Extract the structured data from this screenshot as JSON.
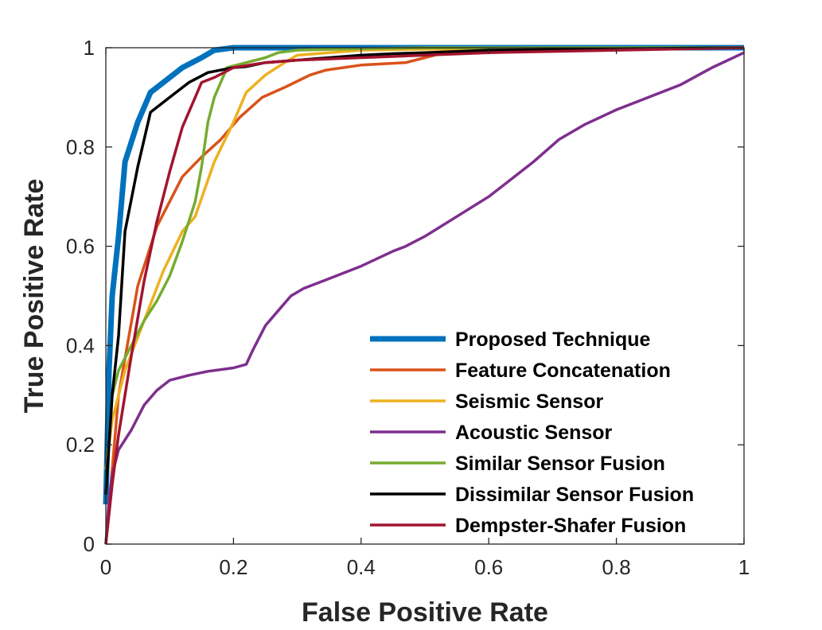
{
  "chart_data": {
    "type": "line",
    "title": "",
    "xlabel": "False Positive Rate",
    "ylabel": "True Positive Rate",
    "xlim": [
      0,
      1
    ],
    "ylim": [
      0,
      1
    ],
    "xticks": [
      0,
      0.2,
      0.4,
      0.6,
      0.8,
      1
    ],
    "yticks": [
      0,
      0.2,
      0.4,
      0.6,
      0.8,
      1
    ],
    "xtick_labels": [
      "0",
      "0.2",
      "0.4",
      "0.6",
      "0.8",
      "1"
    ],
    "ytick_labels": [
      "0",
      "0.2",
      "0.4",
      "0.6",
      "0.8",
      "1"
    ],
    "grid": false,
    "legend_position": "bottom-right",
    "series": [
      {
        "name": "Proposed Technique",
        "color": "#0072BD",
        "emphasis": "thick",
        "x": [
          0,
          0.005,
          0.01,
          0.02,
          0.03,
          0.05,
          0.07,
          0.09,
          0.12,
          0.15,
          0.17,
          0.2,
          0.3,
          0.5,
          1
        ],
        "y": [
          0.08,
          0.35,
          0.5,
          0.62,
          0.77,
          0.85,
          0.91,
          0.93,
          0.96,
          0.98,
          0.995,
          1,
          1,
          1,
          1
        ]
      },
      {
        "name": "Feature Concatenation",
        "color": "#D95319",
        "emphasis": "normal",
        "x": [
          0,
          0.02,
          0.05,
          0.08,
          0.1,
          0.12,
          0.15,
          0.18,
          0.21,
          0.245,
          0.28,
          0.32,
          0.345,
          0.4,
          0.47,
          0.5,
          0.53,
          0.6,
          0.7,
          0.85,
          1
        ],
        "y": [
          0,
          0.3,
          0.52,
          0.64,
          0.69,
          0.74,
          0.78,
          0.815,
          0.86,
          0.9,
          0.92,
          0.945,
          0.955,
          0.965,
          0.97,
          0.98,
          0.99,
          0.993,
          0.995,
          0.997,
          1
        ]
      },
      {
        "name": "Seismic Sensor",
        "color": "#EDB120",
        "emphasis": "normal",
        "x": [
          0,
          0.01,
          0.03,
          0.06,
          0.09,
          0.12,
          0.14,
          0.17,
          0.2,
          0.22,
          0.25,
          0.28,
          0.3,
          0.35,
          0.4,
          0.5,
          1
        ],
        "y": [
          0.15,
          0.25,
          0.35,
          0.45,
          0.55,
          0.63,
          0.66,
          0.77,
          0.85,
          0.91,
          0.945,
          0.97,
          0.985,
          0.99,
          0.995,
          0.997,
          1
        ]
      },
      {
        "name": "Acoustic Sensor",
        "color": "#7E2F8E",
        "emphasis": "normal",
        "x": [
          0,
          0.005,
          0.01,
          0.02,
          0.04,
          0.06,
          0.08,
          0.1,
          0.13,
          0.16,
          0.2,
          0.22,
          0.23,
          0.25,
          0.27,
          0.29,
          0.31,
          0.35,
          0.4,
          0.45,
          0.47,
          0.5,
          0.55,
          0.6,
          0.63,
          0.67,
          0.71,
          0.75,
          0.8,
          0.85,
          0.9,
          0.95,
          1
        ],
        "y": [
          0,
          0.09,
          0.14,
          0.19,
          0.23,
          0.28,
          0.31,
          0.33,
          0.34,
          0.348,
          0.355,
          0.362,
          0.39,
          0.44,
          0.47,
          0.5,
          0.515,
          0.535,
          0.56,
          0.59,
          0.6,
          0.62,
          0.66,
          0.7,
          0.73,
          0.77,
          0.815,
          0.845,
          0.875,
          0.9,
          0.925,
          0.96,
          0.99
        ]
      },
      {
        "name": "Similar Sensor Fusion",
        "color": "#77AC30",
        "emphasis": "normal",
        "x": [
          0,
          0.01,
          0.02,
          0.04,
          0.06,
          0.08,
          0.1,
          0.12,
          0.14,
          0.15,
          0.16,
          0.17,
          0.19,
          0.22,
          0.25,
          0.27,
          0.3,
          0.4,
          0.5,
          1
        ],
        "y": [
          0.1,
          0.3,
          0.35,
          0.4,
          0.45,
          0.49,
          0.54,
          0.61,
          0.69,
          0.76,
          0.85,
          0.9,
          0.96,
          0.97,
          0.98,
          0.99,
          0.995,
          0.998,
          1,
          1
        ]
      },
      {
        "name": "Dissimilar Sensor Fusion",
        "color": "#000000",
        "emphasis": "normal",
        "x": [
          0,
          0.01,
          0.02,
          0.03,
          0.05,
          0.07,
          0.1,
          0.13,
          0.16,
          0.2,
          0.22,
          0.25,
          0.3,
          0.35,
          0.4,
          0.45,
          0.5,
          0.6,
          0.8,
          1
        ],
        "y": [
          0.1,
          0.3,
          0.42,
          0.63,
          0.76,
          0.87,
          0.9,
          0.93,
          0.95,
          0.96,
          0.962,
          0.97,
          0.975,
          0.98,
          0.985,
          0.988,
          0.99,
          0.995,
          0.998,
          1
        ]
      },
      {
        "name": "Dempster-Shafer Fusion",
        "color": "#A2142F",
        "emphasis": "normal",
        "x": [
          0,
          0.01,
          0.02,
          0.04,
          0.06,
          0.08,
          0.1,
          0.12,
          0.14,
          0.15,
          0.17,
          0.2,
          0.25,
          0.3,
          0.4,
          0.5,
          0.6,
          0.8,
          1
        ],
        "y": [
          0,
          0.12,
          0.22,
          0.38,
          0.53,
          0.65,
          0.75,
          0.84,
          0.9,
          0.93,
          0.94,
          0.96,
          0.97,
          0.975,
          0.98,
          0.985,
          0.99,
          0.995,
          1
        ]
      }
    ]
  }
}
